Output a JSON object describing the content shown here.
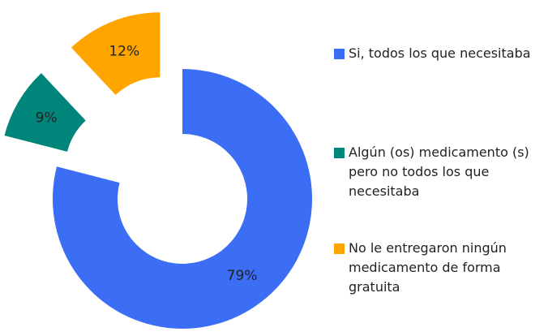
{
  "chart_data": {
    "type": "donut",
    "categories": [
      "Si, todos los que necesitaba",
      "Algún (os) medicamento (s) pero no todos los que necesitaba",
      "No le entregaron ningún medicamento de forma gratuita"
    ],
    "values": [
      79,
      9,
      12
    ],
    "value_labels": [
      "79%",
      "9%",
      "12%"
    ],
    "colors": [
      "#3b6ef5",
      "#00857a",
      "#ffa500"
    ],
    "legend": "right"
  }
}
